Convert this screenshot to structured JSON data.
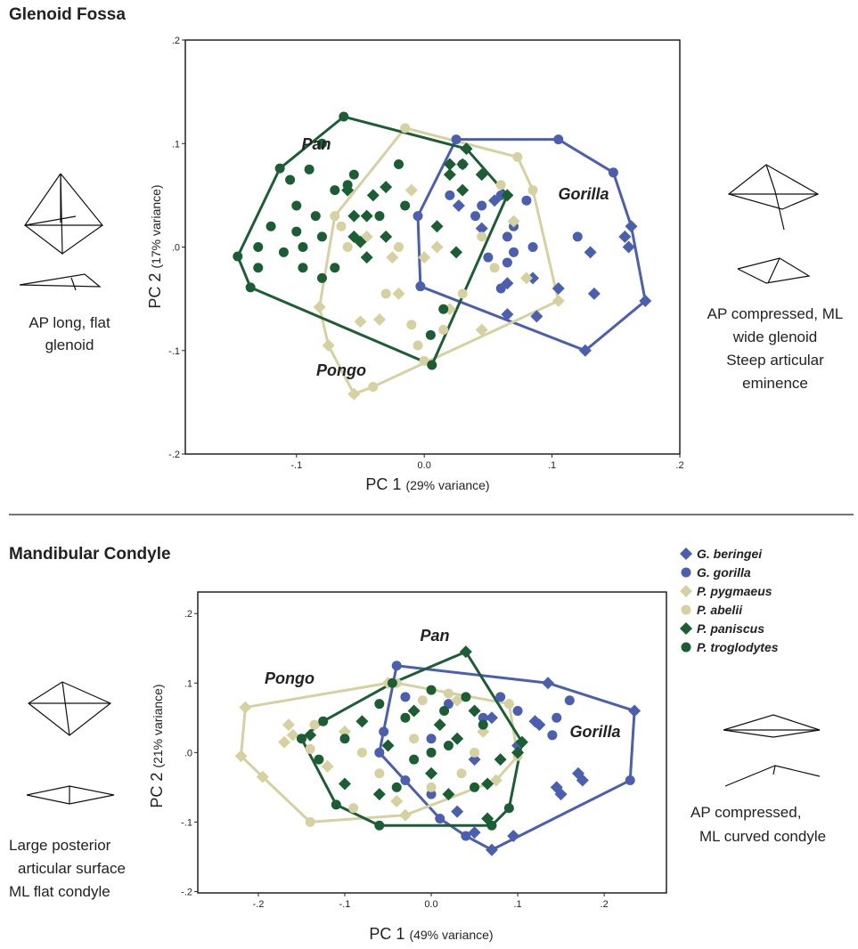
{
  "chart_data": [
    {
      "type": "scatter",
      "title": "Glenoid Fossa",
      "xlabel": "PC 1",
      "xlabel_note": "(29% variance)",
      "ylabel": "PC 2",
      "ylabel_note": "(17% variance)",
      "xlim": [
        -0.187,
        0.2
      ],
      "ylim": [
        -0.2,
        0.2
      ],
      "xticks": [
        {
          "value": -0.1,
          "label": "-.1"
        },
        {
          "value": 0,
          "label": "0.0"
        },
        {
          "value": 0.1,
          "label": ".1"
        },
        {
          "value": 0.2,
          "label": ".2"
        }
      ],
      "yticks": [
        {
          "value": 0.2,
          "label": ".2"
        },
        {
          "value": 0.1,
          "label": ".1"
        },
        {
          "value": 0,
          "label": ".0"
        },
        {
          "value": -0.1,
          "label": "-.1"
        },
        {
          "value": -0.2,
          "label": "-.2"
        }
      ],
      "annotations": [
        "Gorilla",
        "Pongo",
        "Pan"
      ],
      "notes_left": [
        "AP long, flat",
        "glenoid"
      ],
      "notes_right": [
        "AP compressed, ML",
        "wide glenoid",
        "Steep articular",
        "eminence"
      ],
      "series": [
        {
          "color": "#4a5fb0",
          "marker": "diamond",
          "x": [
            0.173,
            0.162,
            0.157,
            0.16,
            0.13,
            0.126,
            0.133,
            0.085,
            0.065,
            0.088,
            0.065,
            0.055,
            0.03,
            0.027,
            0.045,
            0.105
          ],
          "values": [
            -0.052,
            0.02,
            0.01,
            0,
            -0.005,
            -0.1,
            -0.045,
            -0.03,
            -0.065,
            -0.067,
            -0.035,
            0.045,
            0.08,
            0.04,
            0.018,
            -0.04
          ]
        },
        {
          "color": "#4a5fb0",
          "marker": "circle",
          "x": [
            0.105,
            0.148,
            0.025,
            0.06,
            0.045,
            0.04,
            0.08,
            0.07,
            0.07,
            0.085,
            0.12,
            0.065,
            -0.003,
            0.06,
            0.065,
            0.05,
            0.02,
            -0.005
          ],
          "values": [
            0.104,
            0.072,
            0.104,
            0.05,
            0.04,
            0.03,
            0.045,
            0.02,
            -0.005,
            0,
            0.01,
            0.01,
            -0.038,
            -0.04,
            -0.015,
            -0.01,
            0.05,
            0.03
          ]
        },
        {
          "color": "#d6d1a0",
          "marker": "diamond",
          "x": [
            -0.055,
            -0.082,
            -0.075,
            -0.05,
            -0.035,
            -0.02,
            -0.045,
            -0.025,
            0,
            0.01,
            0.07,
            0.08,
            0.02,
            0.045,
            0.105,
            -0.01
          ],
          "values": [
            -0.142,
            -0.058,
            -0.095,
            -0.072,
            -0.07,
            -0.045,
            0.01,
            -0.01,
            -0.01,
            0,
            0.025,
            -0.03,
            -0.06,
            -0.08,
            -0.052,
            0.055
          ]
        },
        {
          "color": "#d6d1a0",
          "marker": "circle",
          "x": [
            -0.015,
            0.073,
            -0.065,
            -0.07,
            -0.06,
            -0.03,
            -0.01,
            -0.005,
            0,
            0.015,
            0.03,
            -0.04,
            0.045,
            0.055,
            0.085,
            0.06,
            -0.02
          ],
          "values": [
            0.115,
            0.087,
            0.02,
            0.03,
            0,
            -0.045,
            -0.075,
            -0.095,
            -0.11,
            -0.08,
            -0.045,
            -0.135,
            0.01,
            -0.02,
            0.055,
            0.06,
            0
          ]
        },
        {
          "color": "#1b5e34",
          "marker": "diamond",
          "x": [
            0.065,
            0.03,
            0.02,
            -0.06,
            -0.04,
            -0.03,
            -0.055,
            -0.05,
            -0.03,
            -0.045,
            0.01,
            0.025,
            0.02,
            0.045,
            0.033,
            -0.055,
            -0.045
          ],
          "values": [
            0.05,
            0.055,
            0.07,
            0.055,
            0.05,
            0.058,
            0.03,
            0.005,
            0.01,
            -0.01,
            0.02,
            -0.005,
            0.08,
            0.07,
            0.095,
            0.01,
            0.03
          ]
        },
        {
          "color": "#1b5e34",
          "marker": "circle",
          "x": [
            -0.063,
            -0.113,
            -0.146,
            -0.136,
            0.006,
            -0.105,
            -0.09,
            -0.08,
            -0.12,
            -0.1,
            -0.085,
            -0.08,
            -0.13,
            -0.095,
            -0.08,
            -0.07,
            -0.06,
            -0.035,
            -0.015,
            0.015,
            0.005,
            -0.1,
            -0.07,
            -0.055,
            -0.13,
            -0.11,
            -0.095,
            -0.02,
            0.03
          ],
          "values": [
            0.126,
            0.076,
            -0.009,
            -0.039,
            -0.114,
            0.065,
            0.075,
            0.1,
            0.02,
            0.015,
            0.03,
            0.01,
            -0.02,
            -0.02,
            -0.03,
            0.055,
            0.06,
            0.03,
            0.04,
            -0.06,
            -0.085,
            0.04,
            -0.02,
            0.07,
            0,
            -0.005,
            0,
            0.08,
            0.08
          ]
        }
      ]
    },
    {
      "type": "scatter",
      "title": "Mandibular Condyle",
      "xlabel": "PC 1",
      "xlabel_note": "(49% variance)",
      "ylabel": "PC 2",
      "ylabel_note": "(21% variance)",
      "xlim": [
        -0.27,
        0.272
      ],
      "ylim": [
        -0.202,
        0.231
      ],
      "xticks": [
        {
          "value": -0.2,
          "label": "-.2"
        },
        {
          "value": -0.1,
          "label": "-.1"
        },
        {
          "value": 0,
          "label": "0.0"
        },
        {
          "value": 0.1,
          "label": ".1"
        },
        {
          "value": 0.2,
          "label": ".2"
        }
      ],
      "yticks": [
        {
          "value": 0.2,
          "label": ".2"
        },
        {
          "value": 0.1,
          "label": ".1"
        },
        {
          "value": 0,
          "label": ".0"
        },
        {
          "value": -0.1,
          "label": "-.1"
        },
        {
          "value": -0.2,
          "label": "-.2"
        }
      ],
      "annotations": [
        "Gorilla",
        "Pongo",
        "Pan"
      ],
      "notes_left": [
        "Large posterior",
        "articular surface",
        "ML flat condyle"
      ],
      "notes_right": [
        "AP compressed,",
        "ML curved condyle"
      ],
      "legend": true,
      "series": [
        {
          "name": "G. beringei",
          "color": "#4a5fb0",
          "marker": "diamond",
          "x": [
            0.135,
            0.235,
            0.125,
            0.17,
            0.175,
            0.145,
            0.15,
            0.12,
            0.05,
            0.07,
            0.1,
            0.03,
            0.07,
            0.05,
            0.095
          ],
          "values": [
            0.1,
            0.06,
            0.04,
            -0.03,
            -0.04,
            -0.05,
            -0.06,
            0.045,
            -0.01,
            0.05,
            0.01,
            -0.085,
            -0.14,
            -0.115,
            -0.12
          ]
        },
        {
          "name": "G. gorilla",
          "color": "#4a5fb0",
          "marker": "circle",
          "x": [
            -0.04,
            0.16,
            0.23,
            0.145,
            0.14,
            0.1,
            0.08,
            0.06,
            0.02,
            0,
            -0.03,
            -0.055,
            -0.06,
            -0.03,
            0,
            0.04,
            0.01
          ],
          "values": [
            0.125,
            0.075,
            -0.04,
            0.05,
            0.025,
            0.06,
            0.08,
            0.05,
            0.07,
            0.02,
            0.08,
            0.03,
            0,
            -0.04,
            -0.06,
            -0.12,
            -0.095
          ]
        },
        {
          "name": "P. pygmaeus",
          "color": "#d6d1a0",
          "marker": "diamond",
          "x": [
            -0.215,
            -0.22,
            -0.195,
            -0.17,
            -0.16,
            -0.165,
            -0.1,
            -0.12,
            -0.08,
            -0.04,
            -0.03,
            0.03,
            0.06,
            0.075,
            -0.05
          ],
          "values": [
            0.065,
            -0.005,
            -0.035,
            0.015,
            0.025,
            0.04,
            0.03,
            -0.02,
            0.045,
            -0.07,
            -0.09,
            0.075,
            0.03,
            -0.04,
            0.1
          ]
        },
        {
          "name": "P. abelii",
          "color": "#d6d1a0",
          "marker": "circle",
          "x": [
            -0.14,
            -0.135,
            -0.14,
            -0.04,
            -0.01,
            0.02,
            0.09,
            0.1,
            0.05,
            -0.06,
            -0.08,
            0,
            -0.02,
            0.035,
            -0.09
          ],
          "values": [
            -0.1,
            0.04,
            0.005,
            0.1,
            0.075,
            0.085,
            0.07,
            -0.005,
            0,
            -0.03,
            0,
            -0.05,
            0.02,
            -0.03,
            -0.08
          ]
        },
        {
          "name": "P. paniscus",
          "color": "#1b5e34",
          "marker": "diamond",
          "x": [
            0.04,
            -0.14,
            -0.08,
            -0.06,
            -0.1,
            0.065,
            0.065,
            0.1,
            0.105,
            0.01,
            -0.02,
            0.03,
            0.05,
            0,
            -0.05,
            0.08,
            0.02
          ],
          "values": [
            0.145,
            0.025,
            0.045,
            -0.06,
            -0.045,
            -0.095,
            -0.045,
            0,
            0.015,
            0.04,
            0.06,
            0.02,
            0.06,
            -0.03,
            0.01,
            -0.01,
            -0.06
          ]
        },
        {
          "name": "P. troglodytes",
          "color": "#1b5e34",
          "marker": "circle",
          "x": [
            -0.045,
            -0.125,
            -0.15,
            -0.11,
            -0.06,
            0.07,
            0.09,
            -0.13,
            -0.1,
            -0.06,
            -0.03,
            0,
            0.015,
            0.04,
            0.06,
            -0.02,
            0.02,
            -0.04,
            0.05,
            0
          ],
          "values": [
            0.1,
            0.045,
            0.02,
            -0.075,
            -0.105,
            -0.105,
            -0.08,
            -0.01,
            0.02,
            0.07,
            0.05,
            0.09,
            0.06,
            0.08,
            0.04,
            -0.01,
            0.01,
            -0.05,
            -0.05,
            0
          ]
        }
      ]
    }
  ]
}
